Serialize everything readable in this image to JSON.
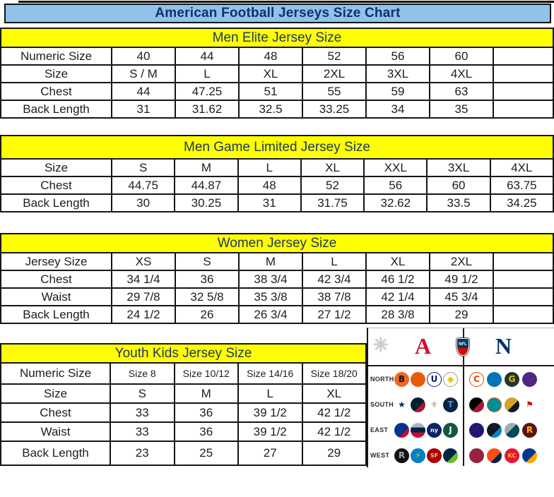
{
  "title": "American Football Jerseys Size Chart",
  "tables": [
    {
      "header": "Men Elite Jersey Size",
      "rows": [
        {
          "label": "Numeric Size",
          "values": [
            "40",
            "44",
            "48",
            "52",
            "56",
            "60",
            ""
          ]
        },
        {
          "label": "Size",
          "values": [
            "S / M",
            "L",
            "XL",
            "2XL",
            "3XL",
            "4XL",
            ""
          ]
        },
        {
          "label": "Chest",
          "values": [
            "44",
            "47.25",
            "51",
            "55",
            "59",
            "63",
            ""
          ]
        },
        {
          "label": "Back Length",
          "values": [
            "31",
            "31.62",
            "32.5",
            "33.25",
            "34",
            "35",
            ""
          ]
        }
      ]
    },
    {
      "header": "Men Game Limited Jersey Size",
      "rows": [
        {
          "label": "Size",
          "values": [
            "S",
            "M",
            "L",
            "XL",
            "XXL",
            "3XL",
            "4XL"
          ]
        },
        {
          "label": "Chest",
          "values": [
            "44.75",
            "44.87",
            "48",
            "52",
            "56",
            "60",
            "63.75"
          ]
        },
        {
          "label": "Back Length",
          "values": [
            "30",
            "30.25",
            "31",
            "31.75",
            "32.62",
            "33.5",
            "34.25"
          ]
        }
      ]
    },
    {
      "header": "Women Jersey Size",
      "rows": [
        {
          "label": "Jersey Size",
          "values": [
            "XS",
            "S",
            "M",
            "L",
            "XL",
            "2XL",
            ""
          ]
        },
        {
          "label": "Chest",
          "values": [
            "34 1/4",
            "36",
            "38 3/4",
            "42 3/4",
            "46 1/2",
            "49 1/2",
            ""
          ]
        },
        {
          "label": "Waist",
          "values": [
            "29 7/8",
            "32 5/8",
            "35 3/8",
            "38 7/8",
            "42 1/4",
            "45 3/4",
            ""
          ]
        },
        {
          "label": "Back Length",
          "values": [
            "24 1/2",
            "26",
            "26 3/4",
            "27 1/2",
            "28 3/8",
            "29",
            ""
          ]
        }
      ]
    },
    {
      "header": "Youth Kids Jersey Size",
      "rows": [
        {
          "label": "Numeric Size",
          "values": [
            "Size 8",
            "Size 10/12",
            "Size 14/16",
            "Size 18/20"
          ]
        },
        {
          "label": "Size",
          "values": [
            "S",
            "M",
            "L",
            "XL"
          ]
        },
        {
          "label": "Chest",
          "values": [
            "33",
            "36",
            "39 1/2",
            "42 1/2"
          ]
        },
        {
          "label": "Waist",
          "values": [
            "33",
            "36",
            "39 1/2",
            "42 1/2"
          ]
        },
        {
          "label": "Back Length",
          "values": [
            "23",
            "25",
            "27",
            "29"
          ]
        }
      ]
    }
  ],
  "nfl_panel": {
    "afc_letter": "A",
    "nfc_letter": "N",
    "shield_text": "NFL",
    "starburst_glyph": "✳",
    "divisions": [
      {
        "label": "NORTH",
        "afc": [
          {
            "team": "bengals",
            "bg": "#f26522",
            "glyph": "B",
            "fg": "#141414"
          },
          {
            "team": "browns",
            "bg": "#ea5b0c",
            "glyph": "",
            "fg": "#ffffff"
          },
          {
            "team": "colts",
            "bg": "#ffffff",
            "glyph": "U",
            "fg": "#0b2265",
            "border": "#0b2265"
          },
          {
            "team": "steelers",
            "bg": "#ffffff",
            "glyph": "◆",
            "fg": "#f1c400",
            "border": "#9a9a9a"
          }
        ],
        "nfc": [
          {
            "team": "bears",
            "bg": "#ffffff",
            "glyph": "C",
            "fg": "#e64100",
            "border": "#e64100"
          },
          {
            "team": "lions",
            "bg": "#0076b6",
            "glyph": "",
            "fg": "#ffffff"
          },
          {
            "team": "packers",
            "bg": "#203731",
            "glyph": "G",
            "fg": "#ffb612"
          },
          {
            "team": "vikings",
            "bg": "#4f2683",
            "glyph": "",
            "fg": "#ffc62f"
          }
        ]
      },
      {
        "label": "SOUTH",
        "afc": [
          {
            "team": "star",
            "bg": "#ffffff",
            "glyph": "★",
            "fg": "#0b2265"
          },
          {
            "team": "texans",
            "bg": "linear-gradient(135deg,#03202f 60%,#a71930 60%)",
            "glyph": "",
            "fg": "#ffffff"
          },
          {
            "team": "saints",
            "bg": "#ffffff",
            "glyph": "⚜",
            "fg": "#b49759"
          },
          {
            "team": "titans",
            "bg": "#0c2340",
            "glyph": "T",
            "fg": "#4b92db"
          }
        ],
        "nfc": [
          {
            "team": "falcons",
            "bg": "linear-gradient(135deg,#000000 55%,#a71930 55%)",
            "glyph": "",
            "fg": "#ffffff"
          },
          {
            "team": "dolphins",
            "bg": "#008e97",
            "glyph": "",
            "fg": "#fc4c02",
            "border": "#fc4c02"
          },
          {
            "team": "jaguars",
            "bg": "linear-gradient(135deg,#d7a22a 55%,#101820 55%)",
            "glyph": "",
            "fg": "#ffffff"
          },
          {
            "team": "buccaneers",
            "bg": "#ffffff",
            "glyph": "⚑",
            "fg": "#d50a0a"
          }
        ]
      },
      {
        "label": "EAST",
        "afc": [
          {
            "team": "bills",
            "bg": "linear-gradient(135deg,#00338d 65%,#c60c30 65%)",
            "glyph": "",
            "fg": "#ffffff"
          },
          {
            "team": "patriots",
            "bg": "linear-gradient(180deg,#b0b7bc 30%,#002244 30%,#002244 65%,#c60c30 65%)",
            "glyph": "",
            "fg": "#ffffff"
          },
          {
            "team": "giants",
            "bg": "#0b2265",
            "glyph": "ny",
            "fg": "#ffffff"
          },
          {
            "team": "jets",
            "bg": "#125740",
            "glyph": "J",
            "fg": "#ffffff"
          }
        ],
        "nfc": [
          {
            "team": "ravens",
            "bg": "#241773",
            "glyph": "",
            "fg": "#9e7c0c"
          },
          {
            "team": "panthers",
            "bg": "linear-gradient(135deg,#101820 60%,#0085ca 60%)",
            "glyph": "",
            "fg": "#ffffff"
          },
          {
            "team": "eagles",
            "bg": "linear-gradient(135deg,#a5acaf 45%,#004c54 45%)",
            "glyph": "",
            "fg": "#ffffff"
          },
          {
            "team": "redskins",
            "bg": "#5a1414",
            "glyph": "R",
            "fg": "#ffb612"
          }
        ]
      },
      {
        "label": "WEST",
        "afc": [
          {
            "team": "raiders",
            "bg": "#101010",
            "glyph": "R",
            "fg": "#a5acaf"
          },
          {
            "team": "chargers",
            "bg": "#0080c6",
            "glyph": "⚡",
            "fg": "#ffc20e"
          },
          {
            "team": "49ers",
            "bg": "#aa0000",
            "glyph": "SF",
            "fg": "#e5c88f"
          },
          {
            "team": "seahawks",
            "bg": "linear-gradient(135deg,#002244 60%,#69be28 60%)",
            "glyph": "",
            "fg": "#ffffff"
          }
        ],
        "nfc": [
          {
            "team": "cardinals",
            "bg": "#97233f",
            "glyph": "",
            "fg": "#ffffff"
          },
          {
            "team": "broncos",
            "bg": "linear-gradient(135deg,#fb4f14 60%,#002244 60%)",
            "glyph": "",
            "fg": "#ffffff"
          },
          {
            "team": "chiefs",
            "bg": "#e31837",
            "glyph": "KC",
            "fg": "#ffb81c"
          },
          {
            "team": "rams",
            "bg": "linear-gradient(135deg,#003594 60%,#ffa300 60%)",
            "glyph": "",
            "fg": "#ffffff"
          }
        ]
      }
    ]
  },
  "colors": {
    "title_bg": "#8fc3ea",
    "title_text": "#152e6e",
    "section_header_bg": "#ffff00",
    "section_header_text": "#1f3864",
    "table_border": "#151515",
    "afc_red": "#d30b31",
    "nfc_blue": "#013369"
  }
}
